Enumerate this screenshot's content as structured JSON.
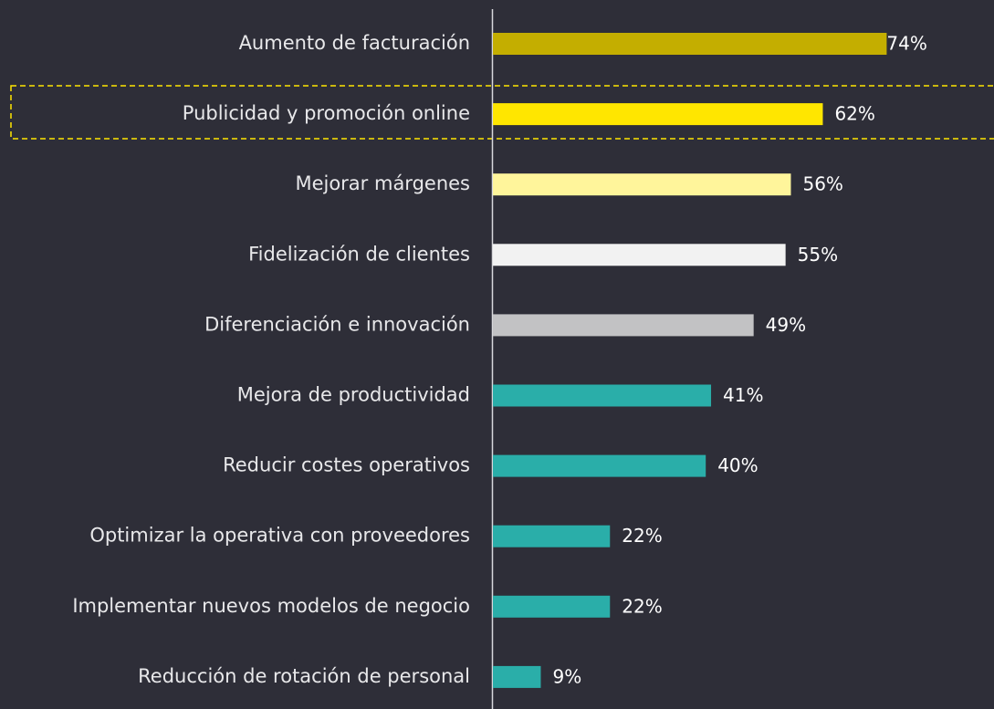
{
  "chart_data": {
    "type": "barh",
    "categories": [
      "Aumento de facturación",
      "Publicidad y promoción online",
      "Mejorar márgenes",
      "Fidelización de clientes",
      "Diferenciación e innovación",
      "Mejora de productividad",
      "Reducir costes operativos",
      "Optimizar la operativa con proveedores",
      "Implementar nuevos modelos de negocio",
      "Reducción de rotación de personal"
    ],
    "values": [
      74,
      62,
      56,
      55,
      49,
      41,
      40,
      22,
      22,
      9
    ],
    "value_labels": [
      "74%",
      "62%",
      "56%",
      "55%",
      "49%",
      "41%",
      "40%",
      "22%",
      "22%",
      "9%"
    ],
    "colors": [
      "#c4ae00",
      "#ffe600",
      "#fff59b",
      "#f2f2f2",
      "#c2c2c4",
      "#2aaea9",
      "#2aaea9",
      "#2aaea9",
      "#2aaea9",
      "#2aaea9"
    ]
  }
}
